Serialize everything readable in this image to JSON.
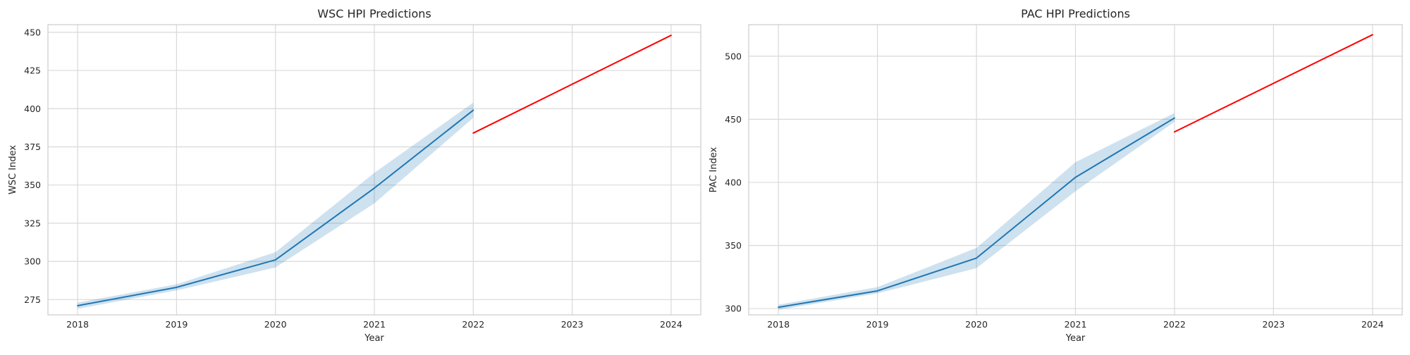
{
  "chart_data": [
    {
      "type": "line",
      "title": "WSC HPI Predictions",
      "xlabel": "Year",
      "ylabel": "WSC Index",
      "xlim": [
        2017.7,
        2024.3
      ],
      "ylim": [
        265,
        455
      ],
      "x_ticks": [
        "2018",
        "2019",
        "2020",
        "2021",
        "2022",
        "2023",
        "2024"
      ],
      "y_ticks": [
        "275",
        "300",
        "325",
        "350",
        "375",
        "400",
        "425",
        "450"
      ],
      "grid": true,
      "colors": {
        "actual": "#1f77b4",
        "band": "#1f77b4",
        "predicted": "#ff0000",
        "grid": "#d9d9d9",
        "frame": "#cccccc"
      },
      "series": [
        {
          "kind": "actual",
          "x": [
            2018,
            2019,
            2020,
            2021,
            2022
          ],
          "values": [
            271,
            283,
            301,
            348,
            399
          ]
        },
        {
          "kind": "confidence-band",
          "x": [
            2018,
            2019,
            2020,
            2021,
            2022
          ],
          "lower": [
            269,
            281,
            296,
            338,
            394
          ],
          "upper": [
            273,
            285,
            306,
            358,
            404
          ]
        },
        {
          "kind": "predicted",
          "x": [
            2022,
            2024
          ],
          "values": [
            384,
            448
          ]
        }
      ]
    },
    {
      "type": "line",
      "title": "PAC HPI Predictions",
      "xlabel": "Year",
      "ylabel": "PAC Index",
      "xlim": [
        2017.7,
        2024.3
      ],
      "ylim": [
        295,
        525
      ],
      "x_ticks": [
        "2018",
        "2019",
        "2020",
        "2021",
        "2022",
        "2023",
        "2024"
      ],
      "y_ticks": [
        "300",
        "350",
        "400",
        "450",
        "500"
      ],
      "grid": true,
      "colors": {
        "actual": "#1f77b4",
        "band": "#1f77b4",
        "predicted": "#ff0000",
        "grid": "#d9d9d9",
        "frame": "#cccccc"
      },
      "series": [
        {
          "kind": "actual",
          "x": [
            2018,
            2019,
            2020,
            2021,
            2022
          ],
          "values": [
            301,
            314,
            340,
            404,
            451
          ]
        },
        {
          "kind": "confidence-band",
          "x": [
            2018,
            2019,
            2020,
            2021,
            2022
          ],
          "lower": [
            299,
            312,
            332,
            393,
            448
          ],
          "upper": [
            303,
            317,
            348,
            416,
            455
          ]
        },
        {
          "kind": "predicted",
          "x": [
            2022,
            2024
          ],
          "values": [
            440,
            517
          ]
        }
      ]
    }
  ]
}
